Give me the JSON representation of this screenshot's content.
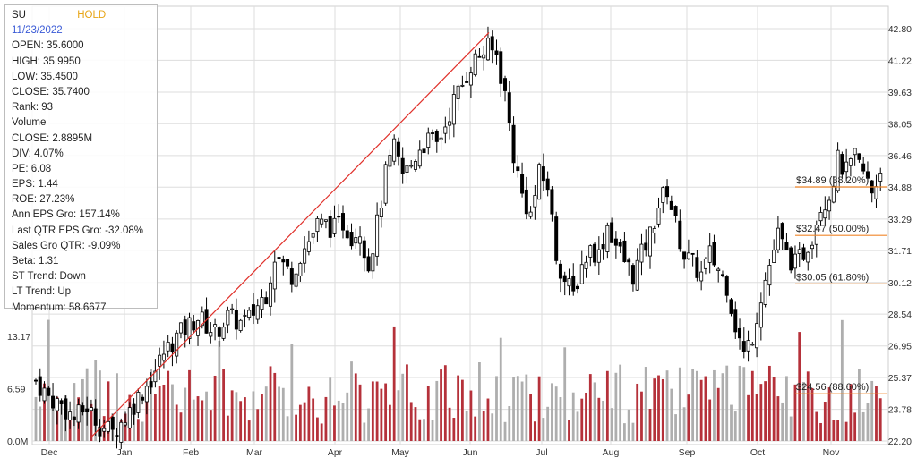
{
  "info": {
    "ticker": "SU",
    "rating": "HOLD",
    "date": "11/23/2022",
    "rows": [
      "OPEN: 35.6000",
      "HIGH: 35.9950",
      "LOW: 35.4500",
      "CLOSE: 35.7400",
      "Rank: 93",
      "Volume",
      "CLOSE: 2.8895M",
      "DIV: 4.07%",
      "PE: 6.08",
      "EPS: 1.44",
      "ROE: 27.23%",
      "Ann EPS Gro: 157.14%",
      "Last QTR EPS Gro: -32.08%",
      "Sales Gro QTR: -9.09%",
      "Beta: 1.31",
      "ST Trend: Down",
      "LT Trend: Up",
      "Momentum: 58.6677"
    ]
  },
  "colors": {
    "rating": "#e8a516",
    "date": "#3b5bd6",
    "candle": "#000000",
    "volume_up": "#b5313a",
    "volume_down": "#aeaeae",
    "trendline": "#e0302a",
    "fib_line": "#f0862a",
    "grid": "#dddddd"
  },
  "chart_data": {
    "type": "candlestick",
    "price_axis": {
      "side": "right",
      "ticks": [
        "42.80",
        "41.22",
        "39.63",
        "38.05",
        "36.46",
        "34.88",
        "33.29",
        "31.71",
        "30.12",
        "28.54",
        "26.95",
        "25.37",
        "23.78",
        "22.20"
      ],
      "range": [
        22.2,
        42.8
      ]
    },
    "volume_axis": {
      "side": "left",
      "ticks": [
        "13.17",
        "6.59",
        "0.0M"
      ],
      "range": [
        0,
        13.17
      ]
    },
    "x_axis": {
      "labels": [
        "Dec",
        "Jan",
        "Feb",
        "Mar",
        "Apr",
        "May",
        "Jun",
        "Jul",
        "Aug",
        "Sep",
        "Oct",
        "Nov"
      ]
    },
    "grid": true,
    "fib_levels": [
      {
        "label": "$34.89 (38.20%)",
        "price": 34.89
      },
      {
        "label": "$32.47 (50.00%)",
        "price": 32.47
      },
      {
        "label": "$30.05 (61.80%)",
        "price": 30.05
      },
      {
        "label": "$24.56 (88.60%)",
        "price": 24.56
      }
    ],
    "trendline": {
      "from": {
        "month": "Dec",
        "price": 22.4
      },
      "to": {
        "month": "Jun",
        "price": 42.6
      }
    },
    "price_path": [
      [
        0,
        25.2
      ],
      [
        3,
        24.4
      ],
      [
        6,
        24.0
      ],
      [
        9,
        23.3
      ],
      [
        12,
        23.9
      ],
      [
        15,
        23.0
      ],
      [
        18,
        22.6
      ],
      [
        21,
        23.4
      ],
      [
        24,
        24.4
      ],
      [
        27,
        25.3
      ],
      [
        30,
        26.6
      ],
      [
        33,
        27.4
      ],
      [
        36,
        28.0
      ],
      [
        38,
        28.4
      ],
      [
        40,
        28.0
      ],
      [
        42,
        27.6
      ],
      [
        45,
        28.4
      ],
      [
        48,
        28.1
      ],
      [
        50,
        28.3
      ],
      [
        52,
        29.0
      ],
      [
        54,
        29.6
      ],
      [
        56,
        31.5
      ],
      [
        58,
        31.0
      ],
      [
        60,
        30.5
      ],
      [
        62,
        31.5
      ],
      [
        64,
        32.2
      ],
      [
        66,
        33.0
      ],
      [
        68,
        33.0
      ],
      [
        70,
        32.8
      ],
      [
        72,
        33.1
      ],
      [
        74,
        32.5
      ],
      [
        76,
        32.8
      ],
      [
        78,
        31.0
      ],
      [
        80,
        33.0
      ],
      [
        82,
        35.5
      ],
      [
        84,
        36.8
      ],
      [
        86,
        35.5
      ],
      [
        88,
        36.0
      ],
      [
        90,
        36.9
      ],
      [
        92,
        37.2
      ],
      [
        94,
        37.0
      ],
      [
        96,
        38.0
      ],
      [
        98,
        39.2
      ],
      [
        100,
        40.0
      ],
      [
        102,
        41.0
      ],
      [
        104,
        41.5
      ],
      [
        106,
        41.8
      ],
      [
        108,
        41.5
      ],
      [
        110,
        39.5
      ],
      [
        112,
        36.5
      ],
      [
        114,
        34.5
      ],
      [
        116,
        33.5
      ],
      [
        118,
        35.5
      ],
      [
        120,
        35.0
      ],
      [
        122,
        31.5
      ],
      [
        124,
        30.2
      ],
      [
        126,
        29.5
      ],
      [
        128,
        31.0
      ],
      [
        130,
        31.8
      ],
      [
        132,
        31.5
      ],
      [
        134,
        33.0
      ],
      [
        136,
        32.0
      ],
      [
        138,
        31.2
      ],
      [
        140,
        30.5
      ],
      [
        142,
        31.5
      ],
      [
        144,
        32.5
      ],
      [
        146,
        34.0
      ],
      [
        148,
        34.8
      ],
      [
        150,
        33.0
      ],
      [
        152,
        31.5
      ],
      [
        154,
        31.0
      ],
      [
        156,
        30.5
      ],
      [
        158,
        31.5
      ],
      [
        160,
        30.8
      ],
      [
        162,
        30.0
      ],
      [
        164,
        28.0
      ],
      [
        166,
        26.5
      ],
      [
        168,
        27.5
      ],
      [
        170,
        29.5
      ],
      [
        172,
        31.0
      ],
      [
        174,
        32.5
      ],
      [
        176,
        31.5
      ],
      [
        178,
        31.0
      ],
      [
        180,
        31.6
      ],
      [
        182,
        32.5
      ],
      [
        184,
        34.0
      ],
      [
        186,
        34.5
      ],
      [
        188,
        36.2
      ],
      [
        190,
        35.6
      ],
      [
        192,
        36.3
      ],
      [
        194,
        35.6
      ],
      [
        196,
        34.6
      ],
      [
        198,
        35.74
      ]
    ]
  }
}
